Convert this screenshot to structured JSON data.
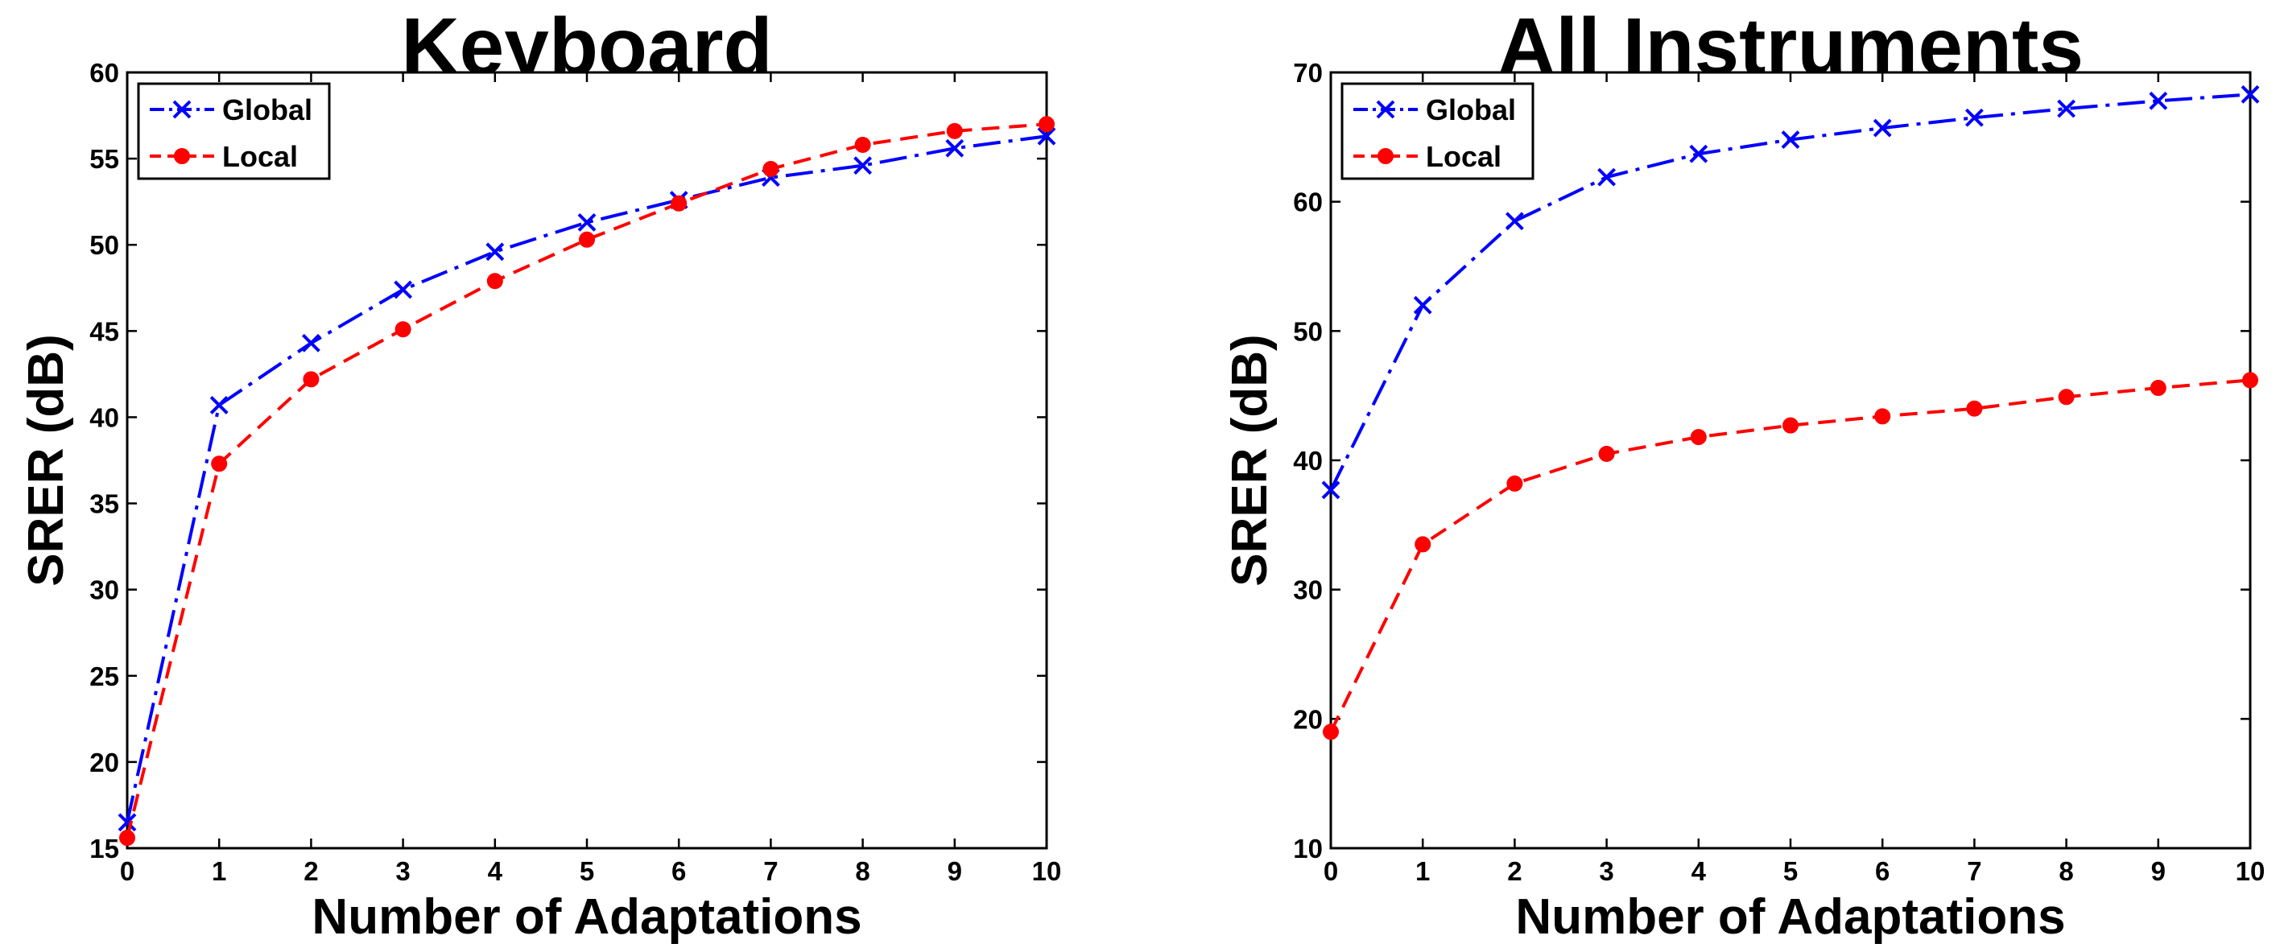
{
  "chart_data": [
    {
      "type": "line",
      "title": "Keyboard",
      "xlabel": "Number of Adaptations",
      "ylabel": "SRER (dB)",
      "x": [
        0,
        1,
        2,
        3,
        4,
        5,
        6,
        7,
        8,
        9,
        10
      ],
      "xlim": [
        0,
        10
      ],
      "ylim": [
        15,
        60
      ],
      "xticks": [
        0,
        1,
        2,
        3,
        4,
        5,
        6,
        7,
        8,
        9,
        10
      ],
      "yticks": [
        15,
        20,
        25,
        30,
        35,
        40,
        45,
        50,
        55,
        60
      ],
      "grid": false,
      "legend_position": "top-left",
      "series": [
        {
          "name": "Global",
          "color": "#0000ff",
          "line_style": "dash-dot",
          "marker": "x",
          "values": [
            16.5,
            40.7,
            44.3,
            47.4,
            49.6,
            51.3,
            52.6,
            53.9,
            54.6,
            55.6,
            56.3
          ]
        },
        {
          "name": "Local",
          "color": "#ff0000",
          "line_style": "dashed",
          "marker": "circle",
          "values": [
            15.6,
            37.3,
            42.2,
            45.1,
            47.9,
            50.3,
            52.4,
            54.4,
            55.8,
            56.6,
            57.0
          ]
        }
      ]
    },
    {
      "type": "line",
      "title": "All Instruments",
      "xlabel": "Number of Adaptations",
      "ylabel": "SRER (dB)",
      "x": [
        0,
        1,
        2,
        3,
        4,
        5,
        6,
        7,
        8,
        9,
        10
      ],
      "xlim": [
        0,
        10
      ],
      "ylim": [
        10,
        70
      ],
      "xticks": [
        0,
        1,
        2,
        3,
        4,
        5,
        6,
        7,
        8,
        9,
        10
      ],
      "yticks": [
        10,
        20,
        30,
        40,
        50,
        60,
        70
      ],
      "grid": false,
      "legend_position": "top-left",
      "series": [
        {
          "name": "Global",
          "color": "#0000ff",
          "line_style": "dash-dot",
          "marker": "x",
          "values": [
            37.7,
            52.0,
            58.5,
            61.9,
            63.7,
            64.8,
            65.7,
            66.5,
            67.2,
            67.8,
            68.3
          ]
        },
        {
          "name": "Local",
          "color": "#ff0000",
          "line_style": "dashed",
          "marker": "circle",
          "values": [
            19.0,
            33.5,
            38.2,
            40.5,
            41.8,
            42.7,
            43.4,
            44.0,
            44.9,
            45.6,
            46.2
          ]
        }
      ]
    }
  ]
}
